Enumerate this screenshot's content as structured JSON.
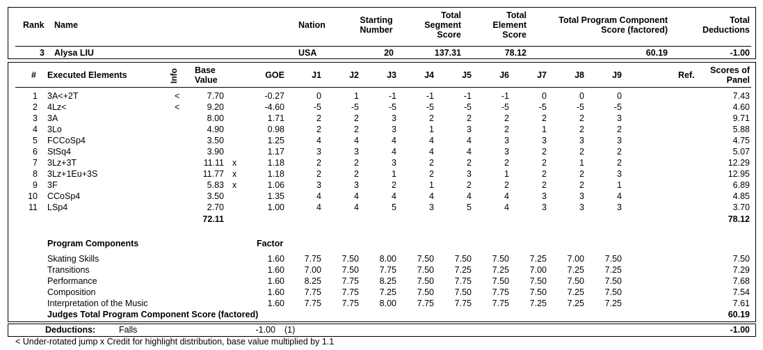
{
  "header": {
    "rank": "Rank",
    "name": "Name",
    "nation": "Nation",
    "starting_number": [
      "Starting",
      "Number"
    ],
    "total_segment_score": [
      "Total",
      "Segment",
      "Score"
    ],
    "total_element_score": [
      "Total",
      "Element",
      "Score"
    ],
    "total_pcs": [
      "Total Program Component",
      "Score (factored)"
    ],
    "total_deductions": [
      "Total",
      "Deductions"
    ]
  },
  "skater": {
    "rank": "3",
    "name": "Alysa LIU",
    "nation": "USA",
    "starting_number": "20",
    "total_segment_score": "137.31",
    "total_element_score": "78.12",
    "total_pcs": "60.19",
    "total_deductions": "-1.00"
  },
  "elements_header": {
    "num": "#",
    "executed": "Executed Elements",
    "info": "Info",
    "base_value": [
      "Base",
      "Value"
    ],
    "goe": "GOE",
    "judges": [
      "J1",
      "J2",
      "J3",
      "J4",
      "J5",
      "J6",
      "J7",
      "J8",
      "J9"
    ],
    "ref": "Ref.",
    "scores": [
      "Scores of",
      "Panel"
    ]
  },
  "elements": [
    {
      "n": "1",
      "name": "3A<+2T",
      "info": "<",
      "bv": "7.70",
      "x": "",
      "goe": "-0.27",
      "j": [
        "0",
        "1",
        "-1",
        "-1",
        "-1",
        "-1",
        "0",
        "0",
        "0"
      ],
      "score": "7.43"
    },
    {
      "n": "2",
      "name": "4Lz<",
      "info": "<",
      "bv": "9.20",
      "x": "",
      "goe": "-4.60",
      "j": [
        "-5",
        "-5",
        "-5",
        "-5",
        "-5",
        "-5",
        "-5",
        "-5",
        "-5"
      ],
      "score": "4.60"
    },
    {
      "n": "3",
      "name": "3A",
      "info": "",
      "bv": "8.00",
      "x": "",
      "goe": "1.71",
      "j": [
        "2",
        "2",
        "3",
        "2",
        "2",
        "2",
        "2",
        "2",
        "3"
      ],
      "score": "9.71"
    },
    {
      "n": "4",
      "name": "3Lo",
      "info": "",
      "bv": "4.90",
      "x": "",
      "goe": "0.98",
      "j": [
        "2",
        "2",
        "3",
        "1",
        "3",
        "2",
        "1",
        "2",
        "2"
      ],
      "score": "5.88"
    },
    {
      "n": "5",
      "name": "FCCoSp4",
      "info": "",
      "bv": "3.50",
      "x": "",
      "goe": "1.25",
      "j": [
        "4",
        "4",
        "4",
        "4",
        "4",
        "3",
        "3",
        "3",
        "3"
      ],
      "score": "4.75"
    },
    {
      "n": "6",
      "name": "StSq4",
      "info": "",
      "bv": "3.90",
      "x": "",
      "goe": "1.17",
      "j": [
        "3",
        "3",
        "4",
        "4",
        "4",
        "3",
        "2",
        "2",
        "2"
      ],
      "score": "5.07"
    },
    {
      "n": "7",
      "name": "3Lz+3T",
      "info": "",
      "bv": "11.11",
      "x": "x",
      "goe": "1.18",
      "j": [
        "2",
        "2",
        "3",
        "2",
        "2",
        "2",
        "2",
        "1",
        "2"
      ],
      "score": "12.29"
    },
    {
      "n": "8",
      "name": "3Lz+1Eu+3S",
      "info": "",
      "bv": "11.77",
      "x": "x",
      "goe": "1.18",
      "j": [
        "2",
        "2",
        "1",
        "2",
        "3",
        "1",
        "2",
        "2",
        "3"
      ],
      "score": "12.95"
    },
    {
      "n": "9",
      "name": "3F",
      "info": "",
      "bv": "5.83",
      "x": "x",
      "goe": "1.06",
      "j": [
        "3",
        "3",
        "2",
        "1",
        "2",
        "2",
        "2",
        "2",
        "1"
      ],
      "score": "6.89"
    },
    {
      "n": "10",
      "name": "CCoSp4",
      "info": "",
      "bv": "3.50",
      "x": "",
      "goe": "1.35",
      "j": [
        "4",
        "4",
        "4",
        "4",
        "4",
        "4",
        "3",
        "3",
        "4"
      ],
      "score": "4.85"
    },
    {
      "n": "11",
      "name": "LSp4",
      "info": "",
      "bv": "2.70",
      "x": "",
      "goe": "1.00",
      "j": [
        "4",
        "4",
        "5",
        "3",
        "5",
        "4",
        "3",
        "3",
        "3"
      ],
      "score": "3.70"
    }
  ],
  "elements_total_bv": "72.11",
  "elements_total_score": "78.12",
  "pc_header": {
    "title": "Program Components",
    "factor": "Factor"
  },
  "components": [
    {
      "name": "Skating Skills",
      "factor": "1.60",
      "j": [
        "7.75",
        "7.50",
        "8.00",
        "7.50",
        "7.50",
        "7.50",
        "7.25",
        "7.00",
        "7.50"
      ],
      "score": "7.50"
    },
    {
      "name": "Transitions",
      "factor": "1.60",
      "j": [
        "7.00",
        "7.50",
        "7.75",
        "7.50",
        "7.25",
        "7.25",
        "7.00",
        "7.25",
        "7.25"
      ],
      "score": "7.29"
    },
    {
      "name": "Performance",
      "factor": "1.60",
      "j": [
        "8.25",
        "7.75",
        "8.25",
        "7.50",
        "7.75",
        "7.50",
        "7.50",
        "7.50",
        "7.50"
      ],
      "score": "7.68"
    },
    {
      "name": "Composition",
      "factor": "1.60",
      "j": [
        "7.75",
        "7.75",
        "7.25",
        "7.50",
        "7.50",
        "7.75",
        "7.50",
        "7.25",
        "7.50"
      ],
      "score": "7.54"
    },
    {
      "name": "Interpretation of the Music",
      "factor": "1.60",
      "j": [
        "7.75",
        "7.75",
        "8.00",
        "7.75",
        "7.75",
        "7.75",
        "7.25",
        "7.25",
        "7.25"
      ],
      "score": "7.61"
    }
  ],
  "pc_total": {
    "label": "Judges Total Program Component Score (factored)",
    "score": "60.19"
  },
  "deductions": {
    "label": "Deductions:",
    "type": "Falls",
    "value": "-1.00",
    "count": "(1)",
    "total": "-1.00"
  },
  "footnote": "< Under-rotated jump   x Credit for highlight distribution, base value multiplied by 1.1"
}
